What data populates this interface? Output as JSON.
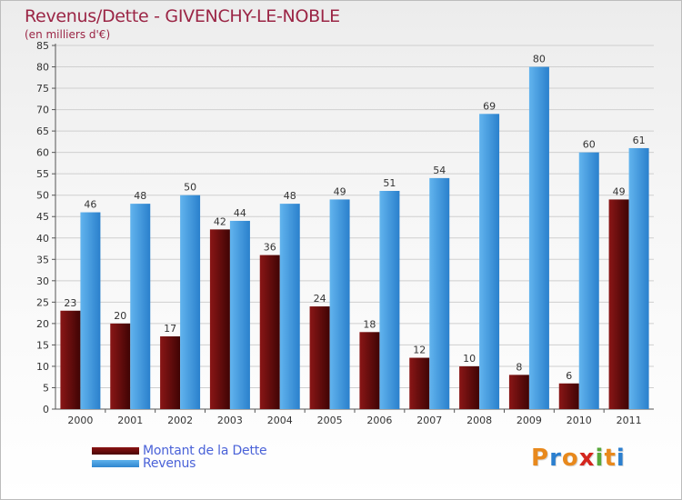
{
  "header": {
    "title": "Revenus/Dette - GIVENCHY-LE-NOBLE",
    "subtitle": "(en milliers d'€)"
  },
  "legend": {
    "items": [
      {
        "label": "Montant de la Dette",
        "color": "#7a0a0a"
      },
      {
        "label": "Revenus",
        "color": "#4aa3e6"
      }
    ]
  },
  "logo": {
    "text": "Proxiti",
    "letters": [
      "P",
      "r",
      "o",
      "x",
      "i",
      "t",
      "i"
    ],
    "colors": [
      "#e8891d",
      "#2b7fcf",
      "#e8891d",
      "#d4261e",
      "#57a83a",
      "#e8891d",
      "#2b7fcf"
    ]
  },
  "chart_data": {
    "type": "bar",
    "title": "Revenus/Dette - GIVENCHY-LE-NOBLE",
    "subtitle": "(en milliers d'€)",
    "categories": [
      "2000",
      "2001",
      "2002",
      "2003",
      "2004",
      "2005",
      "2006",
      "2007",
      "2008",
      "2009",
      "2010",
      "2011"
    ],
    "series": [
      {
        "name": "Montant de la Dette",
        "color": "#7a0a0a",
        "values": [
          23,
          20,
          17,
          42,
          36,
          24,
          18,
          12,
          10,
          8,
          6,
          49
        ]
      },
      {
        "name": "Revenus",
        "color": "#4aa3e6",
        "values": [
          46,
          48,
          50,
          44,
          48,
          49,
          51,
          54,
          69,
          80,
          60,
          61
        ]
      }
    ],
    "ylim": [
      0,
      85
    ],
    "yticks": [
      0,
      5,
      10,
      15,
      20,
      25,
      30,
      35,
      40,
      45,
      50,
      55,
      60,
      65,
      70,
      75,
      80,
      85
    ],
    "grid": true,
    "data_labels": true,
    "legend_position": "bottom-left"
  }
}
